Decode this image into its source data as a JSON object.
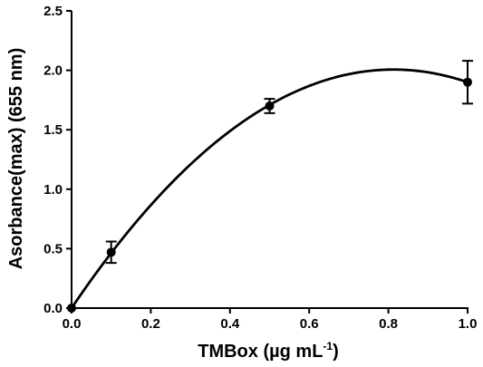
{
  "chart_data": {
    "type": "scatter",
    "title": "",
    "xlabel": "TMBox (µg mL",
    "xlabel_sup": "-1",
    "xlabel_close": ")",
    "ylabel": "Asorbance(max) (655 nm)",
    "xlim": [
      0.0,
      1.0
    ],
    "ylim": [
      0.0,
      2.5
    ],
    "x_ticks": [
      "0.0",
      "0.2",
      "0.4",
      "0.6",
      "0.8",
      "1.0"
    ],
    "y_ticks": [
      "0.0",
      "0.5",
      "1.0",
      "1.5",
      "2.0",
      "2.5"
    ],
    "series": [
      {
        "points": [
          {
            "x": 0.0,
            "y": 0.0,
            "err": 0.0
          },
          {
            "x": 0.1,
            "y": 0.47,
            "err": 0.09
          },
          {
            "x": 0.5,
            "y": 1.7,
            "err": 0.06
          },
          {
            "x": 1.0,
            "y": 1.9,
            "err": 0.18
          }
        ]
      }
    ],
    "fit_curve": {
      "type": "quadratic",
      "coefficients": [
        0.0,
        4.937,
        -3.037
      ]
    },
    "grid": false,
    "legend": "none"
  }
}
